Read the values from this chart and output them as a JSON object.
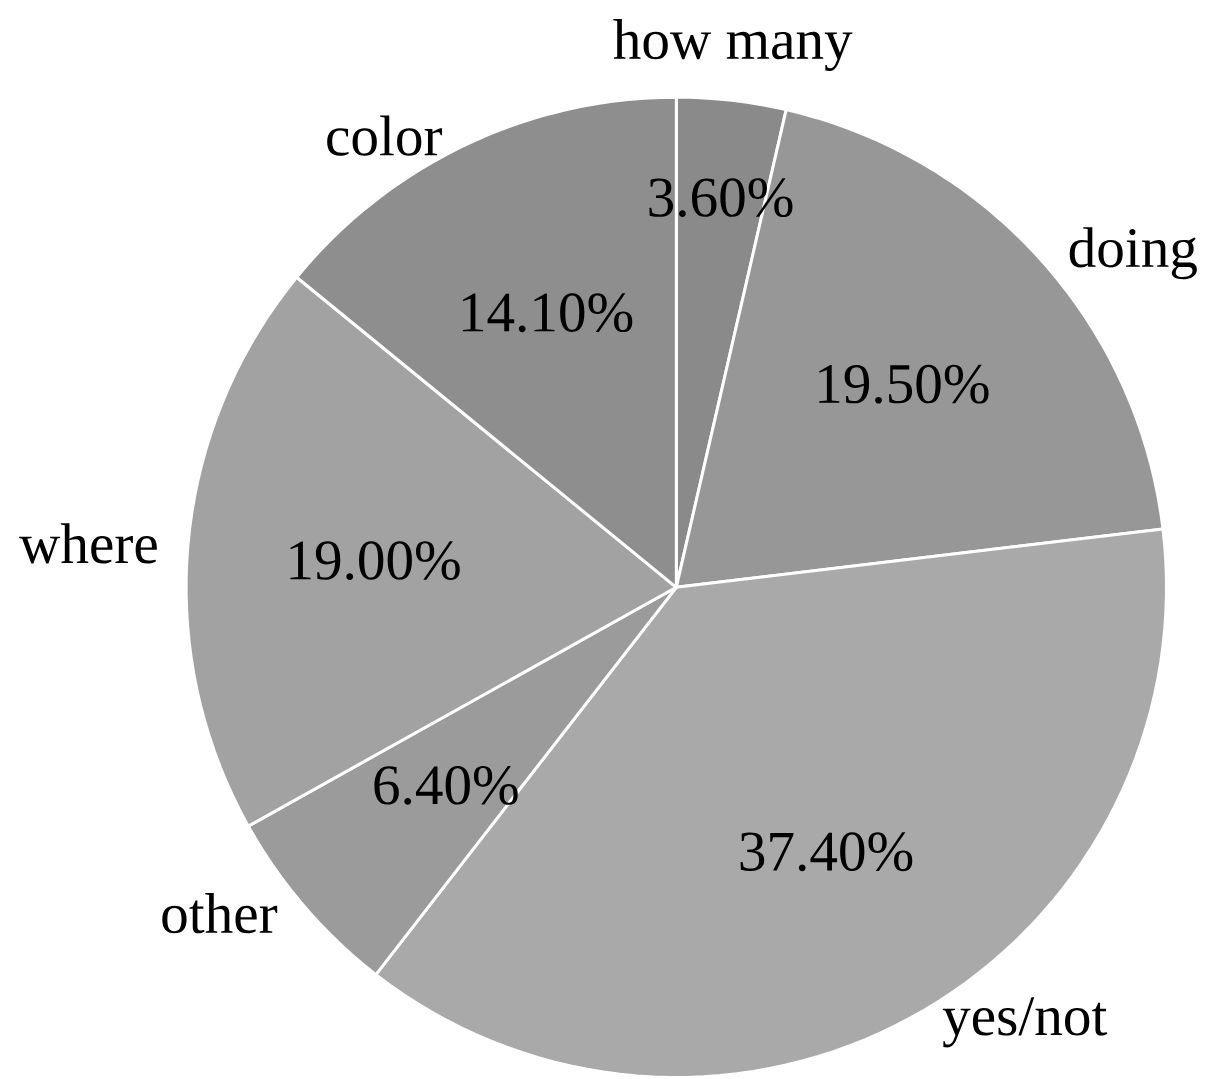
{
  "chart_data": {
    "type": "pie",
    "categories": [
      "how many",
      "doing",
      "yes/not",
      "other",
      "where",
      "color"
    ],
    "values": [
      3.6,
      19.5,
      37.4,
      6.4,
      19.0,
      14.1
    ],
    "value_labels": [
      "3.60%",
      "19.50%",
      "37.40%",
      "6.40%",
      "19.00%",
      "14.10%"
    ],
    "colors": [
      "#8a8a8a",
      "#979797",
      "#a9a9a9",
      "#9b9b9b",
      "#a2a2a2",
      "#8e8e8e"
    ]
  }
}
